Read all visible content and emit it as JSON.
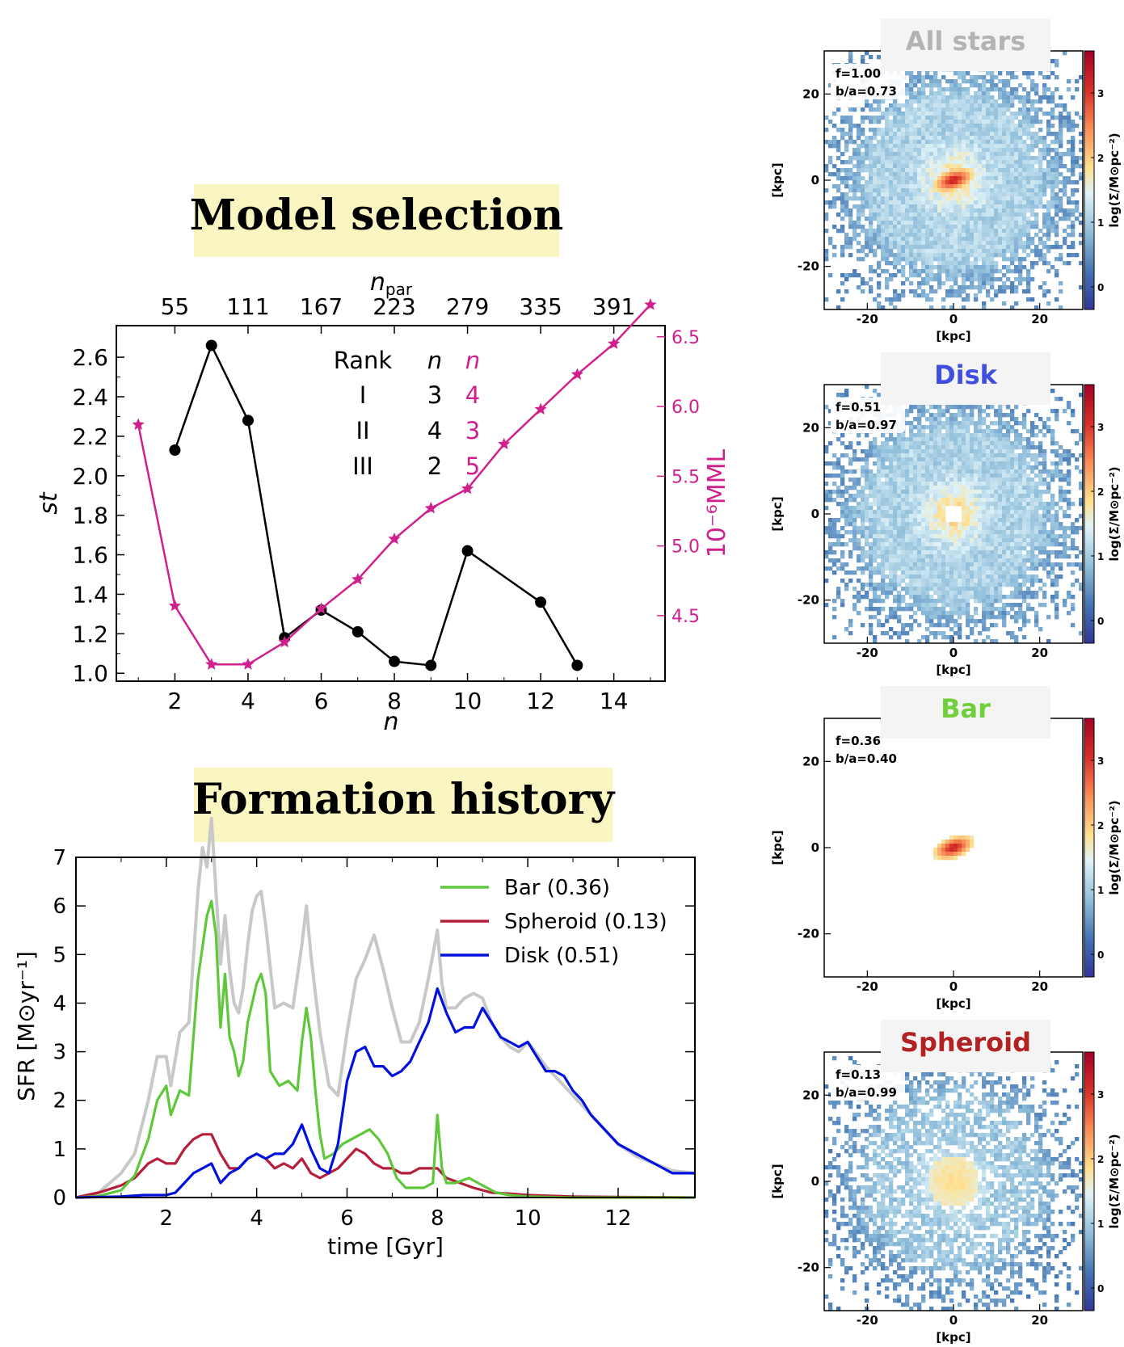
{
  "colors": {
    "black": "#000000",
    "magenta": "#d0208e",
    "title_box": "#faf6c2",
    "bar": "#5ec83a",
    "spheroid": "#b51f3a",
    "disk": "#0011dd",
    "all": "#c8c8c8",
    "label_all": "#b3b3b3",
    "label_disk": "#3e4fe0",
    "label_bar": "#6fd03b",
    "label_spheroid": "#b22222"
  },
  "model_selection": {
    "title": "Model selection",
    "ranking": {
      "header": [
        "Rank",
        "n",
        "n"
      ],
      "rows": [
        [
          "I",
          "3",
          "4"
        ],
        [
          "II",
          "4",
          "3"
        ],
        [
          "III",
          "2",
          "5"
        ]
      ]
    }
  },
  "formation_history": {
    "title": "Formation history"
  },
  "chart_data": [
    {
      "type": "line",
      "name": "model-selection",
      "xlabel": "n",
      "ylabel": "st",
      "y2label": "10⁻⁶MML",
      "top_xlabel": "n_par",
      "xlim": [
        0.4,
        15.4
      ],
      "ylim": [
        0.96,
        2.76
      ],
      "y2lim": [
        4.03,
        6.58
      ],
      "xticks": [
        2,
        4,
        6,
        8,
        10,
        12,
        14
      ],
      "yticks": [
        "1.0",
        "1.2",
        "1.4",
        "1.6",
        "1.8",
        "2.0",
        "2.2",
        "2.4",
        "2.6"
      ],
      "y2ticks": [
        "4.5",
        "5.0",
        "5.5",
        "6.0",
        "6.5"
      ],
      "top_ticks": {
        "positions": [
          2,
          4,
          6,
          8,
          10,
          12,
          14
        ],
        "labels": [
          "55",
          "111",
          "167",
          "223",
          "279",
          "335",
          "391"
        ]
      },
      "series": [
        {
          "axis": "left",
          "x": [
            2,
            3,
            4,
            5,
            6,
            7,
            8,
            9,
            10,
            12,
            13
          ],
          "values": [
            2.13,
            2.66,
            2.28,
            1.18,
            1.32,
            1.21,
            1.06,
            1.04,
            1.62,
            1.36,
            1.04
          ]
        },
        {
          "axis": "right",
          "x": [
            1,
            2,
            3,
            4,
            5,
            6,
            7,
            8,
            9,
            10,
            11,
            12,
            13,
            14,
            15
          ],
          "values": [
            5.87,
            4.57,
            4.15,
            4.15,
            4.31,
            4.55,
            4.76,
            5.05,
            5.27,
            5.41,
            5.73,
            5.98,
            6.23,
            6.45,
            6.73
          ]
        }
      ]
    },
    {
      "type": "line",
      "name": "formation-history",
      "xlabel": "time [Gyr]",
      "ylabel": "SFR [M⊙yr⁻¹]",
      "xlim": [
        0,
        13.7
      ],
      "ylim": [
        0,
        7
      ],
      "xticks": [
        2,
        4,
        6,
        8,
        10,
        12
      ],
      "yticks": [
        0,
        1,
        2,
        3,
        4,
        5,
        6,
        7
      ],
      "legend": "top-right",
      "series": [
        {
          "name": "Bar (0.36)",
          "color_key": "bar",
          "x": [
            0,
            0.5,
            1,
            1.3,
            1.6,
            1.8,
            2.0,
            2.1,
            2.3,
            2.5,
            2.7,
            2.9,
            3.0,
            3.1,
            3.2,
            3.3,
            3.4,
            3.5,
            3.6,
            3.7,
            3.8,
            3.9,
            4.0,
            4.1,
            4.2,
            4.3,
            4.5,
            4.7,
            4.9,
            5.0,
            5.1,
            5.2,
            5.3,
            5.4,
            5.5,
            5.7,
            5.9,
            6.1,
            6.3,
            6.5,
            6.7,
            6.9,
            7.1,
            7.3,
            7.5,
            7.7,
            7.9,
            8.0,
            8.1,
            8.2,
            8.4,
            8.7,
            9.0,
            9.3,
            9.6,
            10,
            11,
            12,
            13.7
          ],
          "values": [
            0,
            0.03,
            0.15,
            0.45,
            1.2,
            2.0,
            2.3,
            1.7,
            2.2,
            2.1,
            4.5,
            5.8,
            6.1,
            5.4,
            3.5,
            4.6,
            3.3,
            3.0,
            2.5,
            2.8,
            3.6,
            4.0,
            4.4,
            4.6,
            4.2,
            2.6,
            2.3,
            2.4,
            2.2,
            3.2,
            3.9,
            3.3,
            2.2,
            1.3,
            0.8,
            0.9,
            1.1,
            1.2,
            1.3,
            1.4,
            1.2,
            0.9,
            0.4,
            0.2,
            0.2,
            0.2,
            0.3,
            1.7,
            0.6,
            0.3,
            0.3,
            0.4,
            0.25,
            0.1,
            0.05,
            0.02,
            0,
            0,
            0
          ]
        },
        {
          "name": "Spheroid (0.13)",
          "color_key": "spheroid",
          "x": [
            0,
            0.5,
            1,
            1.3,
            1.6,
            1.8,
            2.0,
            2.2,
            2.4,
            2.6,
            2.8,
            3.0,
            3.2,
            3.4,
            3.6,
            3.8,
            4.0,
            4.2,
            4.4,
            4.6,
            4.8,
            5.0,
            5.2,
            5.4,
            5.6,
            5.8,
            6.0,
            6.2,
            6.4,
            6.6,
            6.8,
            7.0,
            7.2,
            7.4,
            7.6,
            7.8,
            8.0,
            8.2,
            8.5,
            8.8,
            9.2,
            9.6,
            10,
            11,
            12,
            13.7
          ],
          "values": [
            0,
            0.1,
            0.25,
            0.4,
            0.7,
            0.8,
            0.7,
            0.7,
            1.0,
            1.2,
            1.3,
            1.3,
            0.9,
            0.6,
            0.6,
            0.8,
            0.9,
            0.8,
            0.6,
            0.7,
            0.6,
            0.8,
            0.5,
            0.4,
            0.5,
            0.6,
            0.8,
            1.0,
            0.9,
            0.7,
            0.6,
            0.6,
            0.5,
            0.5,
            0.6,
            0.6,
            0.6,
            0.4,
            0.3,
            0.2,
            0.1,
            0.08,
            0.05,
            0.02,
            0.01,
            0
          ]
        },
        {
          "name": "Disk (0.51)",
          "color_key": "disk",
          "x": [
            0,
            1,
            1.5,
            2.0,
            2.2,
            2.4,
            2.6,
            2.8,
            3.0,
            3.2,
            3.4,
            3.6,
            3.8,
            4.0,
            4.2,
            4.4,
            4.6,
            4.8,
            5.0,
            5.2,
            5.4,
            5.6,
            5.8,
            6.0,
            6.2,
            6.4,
            6.6,
            6.8,
            7.0,
            7.2,
            7.4,
            7.6,
            7.8,
            8.0,
            8.2,
            8.4,
            8.6,
            8.8,
            9.0,
            9.2,
            9.4,
            9.6,
            9.8,
            10.0,
            10.2,
            10.4,
            10.6,
            10.8,
            11.0,
            11.2,
            11.4,
            11.6,
            11.8,
            12.0,
            12.2,
            12.4,
            12.6,
            12.8,
            13.0,
            13.2,
            13.4,
            13.7
          ],
          "values": [
            0,
            0.02,
            0.05,
            0.05,
            0.1,
            0.3,
            0.5,
            0.6,
            0.7,
            0.3,
            0.5,
            0.6,
            0.8,
            0.9,
            0.8,
            0.9,
            0.9,
            1.1,
            1.5,
            1.0,
            0.6,
            0.5,
            1.1,
            2.4,
            3.0,
            3.1,
            2.7,
            2.7,
            2.5,
            2.6,
            2.8,
            3.2,
            3.6,
            4.3,
            3.8,
            3.4,
            3.5,
            3.5,
            3.9,
            3.6,
            3.3,
            3.2,
            3.1,
            3.2,
            2.9,
            2.6,
            2.6,
            2.5,
            2.2,
            2.0,
            1.7,
            1.5,
            1.3,
            1.1,
            1.0,
            0.9,
            0.8,
            0.7,
            0.6,
            0.5,
            0.5,
            0.5
          ]
        },
        {
          "name": "All stars",
          "color_key": "all",
          "x": [
            0,
            0.5,
            1,
            1.3,
            1.6,
            1.8,
            2.0,
            2.1,
            2.3,
            2.5,
            2.7,
            2.8,
            2.9,
            3.0,
            3.1,
            3.2,
            3.3,
            3.4,
            3.5,
            3.6,
            3.7,
            3.8,
            3.9,
            4.0,
            4.1,
            4.2,
            4.4,
            4.6,
            4.8,
            5.0,
            5.1,
            5.2,
            5.4,
            5.6,
            5.8,
            6.0,
            6.2,
            6.4,
            6.6,
            6.8,
            7.0,
            7.2,
            7.4,
            7.6,
            7.8,
            8.0,
            8.1,
            8.2,
            8.4,
            8.6,
            8.8,
            9.0,
            9.2,
            9.4,
            9.6,
            9.8,
            10.0,
            10.4,
            10.8,
            11.2,
            11.6,
            12.0,
            12.4,
            12.8,
            13.2,
            13.7
          ],
          "values": [
            0,
            0.1,
            0.5,
            0.9,
            2.0,
            2.9,
            2.9,
            2.3,
            3.4,
            3.6,
            6.3,
            7.2,
            6.8,
            7.8,
            6.3,
            4.8,
            5.8,
            4.7,
            4.0,
            3.8,
            4.3,
            5.2,
            5.9,
            6.2,
            6.3,
            5.6,
            3.9,
            4.0,
            3.9,
            5.2,
            6.0,
            5.0,
            3.4,
            2.3,
            2.1,
            3.4,
            4.5,
            4.9,
            5.4,
            4.7,
            3.9,
            3.2,
            3.2,
            3.6,
            4.5,
            5.5,
            4.4,
            3.9,
            3.9,
            4.1,
            4.2,
            4.1,
            3.6,
            3.3,
            3.1,
            3.0,
            3.2,
            2.7,
            2.3,
            1.9,
            1.5,
            1.1,
            0.85,
            0.7,
            0.55,
            0.5
          ]
        }
      ]
    },
    {
      "type": "heatmap",
      "name": "all-stars-map",
      "title": "All stars",
      "f": "f=1.00",
      "ba": "b/a=0.73",
      "xlabel": "[kpc]",
      "ylabel": "[kpc]",
      "colorbar_label": "log(Σ/M⊙pc⁻²)",
      "xticks": [
        -20,
        0,
        20
      ],
      "yticks": [
        20,
        0,
        -20
      ],
      "cticks": [
        3,
        2,
        1,
        0
      ],
      "xlim": [
        -30,
        30
      ],
      "ylim": [
        -30,
        30
      ],
      "morphology": {
        "disk": 1,
        "hole": false,
        "core": 1,
        "bar": 1
      }
    },
    {
      "type": "heatmap",
      "name": "disk-map",
      "title": "Disk",
      "f": "f=0.51",
      "ba": "b/a=0.97",
      "xlabel": "[kpc]",
      "ylabel": "[kpc]",
      "colorbar_label": "log(Σ/M⊙pc⁻²)",
      "xticks": [
        -20,
        0,
        20
      ],
      "yticks": [
        20,
        0,
        -20
      ],
      "cticks": [
        3,
        2,
        1,
        0
      ],
      "xlim": [
        -30,
        30
      ],
      "ylim": [
        -30,
        30
      ],
      "morphology": {
        "disk": 1,
        "hole": true,
        "core": 0,
        "bar": 0
      }
    },
    {
      "type": "heatmap",
      "name": "bar-map",
      "title": "Bar",
      "f": "f=0.36",
      "ba": "b/a=0.40",
      "xlabel": "[kpc]",
      "ylabel": "[kpc]",
      "colorbar_label": "log(Σ/M⊙pc⁻²)",
      "xticks": [
        -20,
        0,
        20
      ],
      "yticks": [
        20,
        0,
        -20
      ],
      "cticks": [
        3,
        2,
        1,
        0
      ],
      "xlim": [
        -30,
        30
      ],
      "ylim": [
        -30,
        30
      ],
      "morphology": {
        "disk": 0,
        "hole": false,
        "core": 1,
        "bar": 1
      }
    },
    {
      "type": "heatmap",
      "name": "spheroid-map",
      "title": "Spheroid",
      "f": "f=0.13",
      "ba": "b/a=0.99",
      "xlabel": "[kpc]",
      "ylabel": "[kpc]",
      "colorbar_label": "log(Σ/M⊙pc⁻²)",
      "xticks": [
        -20,
        0,
        20
      ],
      "yticks": [
        20,
        0,
        -20
      ],
      "cticks": [
        3,
        2,
        1,
        0
      ],
      "xlim": [
        -30,
        30
      ],
      "ylim": [
        -30,
        30
      ],
      "morphology": {
        "disk": 0.6,
        "hole": false,
        "core": 0.15,
        "bar": 0
      }
    }
  ]
}
